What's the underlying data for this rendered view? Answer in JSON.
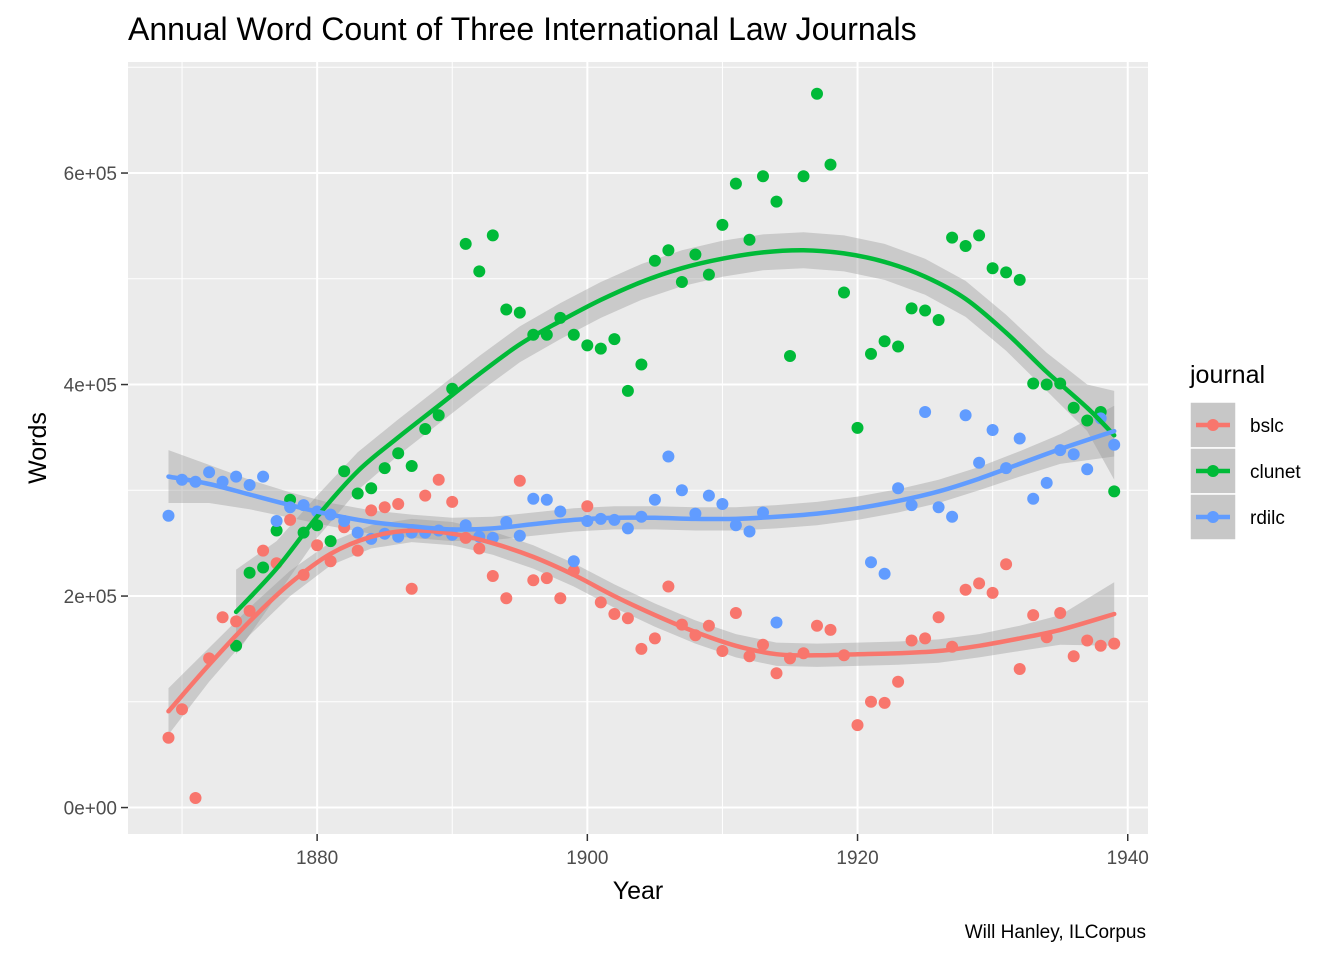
{
  "chart_data": {
    "type": "scatter",
    "title": "Annual Word Count of Three International Law Journals",
    "xlabel": "Year",
    "ylabel": "Words",
    "caption": "Will Hanley, ILCorpus",
    "xlim": [
      1866,
      1941.5
    ],
    "ylim": [
      -25000,
      705000
    ],
    "x_ticks": [
      {
        "value": 1880,
        "label": "1880"
      },
      {
        "value": 1900,
        "label": "1900"
      },
      {
        "value": 1920,
        "label": "1920"
      },
      {
        "value": 1940,
        "label": "1940"
      }
    ],
    "y_ticks": [
      {
        "value": 0,
        "label": "0e+00"
      },
      {
        "value": 200000,
        "label": "2e+05"
      },
      {
        "value": 400000,
        "label": "4e+05"
      },
      {
        "value": 600000,
        "label": "6e+05"
      }
    ],
    "grid": true,
    "smoother": "loess with confidence band",
    "legend": {
      "title": "journal",
      "position": "right"
    },
    "series": [
      {
        "name": "bslc",
        "color": "#F8766D",
        "points": [
          [
            1869,
            66000
          ],
          [
            1870,
            93000
          ],
          [
            1871,
            9000
          ],
          [
            1872,
            141000
          ],
          [
            1873,
            180000
          ],
          [
            1874,
            176000
          ],
          [
            1875,
            186000
          ],
          [
            1876,
            243000
          ],
          [
            1877,
            231000
          ],
          [
            1878,
            272000
          ],
          [
            1879,
            220000
          ],
          [
            1880,
            248000
          ],
          [
            1881,
            233000
          ],
          [
            1882,
            265000
          ],
          [
            1883,
            243000
          ],
          [
            1884,
            281000
          ],
          [
            1885,
            284000
          ],
          [
            1886,
            287000
          ],
          [
            1887,
            207000
          ],
          [
            1888,
            295000
          ],
          [
            1889,
            310000
          ],
          [
            1890,
            289000
          ],
          [
            1891,
            255000
          ],
          [
            1892,
            245000
          ],
          [
            1893,
            219000
          ],
          [
            1894,
            198000
          ],
          [
            1895,
            309000
          ],
          [
            1896,
            215000
          ],
          [
            1897,
            217000
          ],
          [
            1898,
            198000
          ],
          [
            1899,
            224000
          ],
          [
            1900,
            285000
          ],
          [
            1901,
            194000
          ],
          [
            1902,
            183000
          ],
          [
            1903,
            179000
          ],
          [
            1904,
            150000
          ],
          [
            1905,
            160000
          ],
          [
            1906,
            209000
          ],
          [
            1907,
            173000
          ],
          [
            1908,
            163000
          ],
          [
            1909,
            172000
          ],
          [
            1910,
            148000
          ],
          [
            1911,
            184000
          ],
          [
            1912,
            143000
          ],
          [
            1913,
            154000
          ],
          [
            1914,
            127000
          ],
          [
            1915,
            141000
          ],
          [
            1916,
            146000
          ],
          [
            1917,
            172000
          ],
          [
            1918,
            168000
          ],
          [
            1919,
            144000
          ],
          [
            1920,
            78000
          ],
          [
            1921,
            100000
          ],
          [
            1922,
            99000
          ],
          [
            1923,
            119000
          ],
          [
            1924,
            158000
          ],
          [
            1925,
            160000
          ],
          [
            1926,
            180000
          ],
          [
            1927,
            152000
          ],
          [
            1928,
            206000
          ],
          [
            1929,
            212000
          ],
          [
            1930,
            203000
          ],
          [
            1931,
            230000
          ],
          [
            1932,
            131000
          ],
          [
            1933,
            182000
          ],
          [
            1934,
            161000
          ],
          [
            1935,
            184000
          ],
          [
            1936,
            143000
          ],
          [
            1937,
            158000
          ],
          [
            1938,
            153000
          ],
          [
            1939,
            155000
          ]
        ],
        "fit": [
          [
            1869,
            91000
          ],
          [
            1872,
            135000
          ],
          [
            1875,
            176000
          ],
          [
            1878,
            212000
          ],
          [
            1881,
            240000
          ],
          [
            1884,
            256000
          ],
          [
            1887,
            262000
          ],
          [
            1890,
            259000
          ],
          [
            1893,
            250000
          ],
          [
            1896,
            237000
          ],
          [
            1899,
            220000
          ],
          [
            1902,
            200000
          ],
          [
            1905,
            182000
          ],
          [
            1908,
            166000
          ],
          [
            1911,
            153000
          ],
          [
            1914,
            145000
          ],
          [
            1917,
            144000
          ],
          [
            1920,
            145000
          ],
          [
            1923,
            146000
          ],
          [
            1926,
            148000
          ],
          [
            1929,
            153000
          ],
          [
            1932,
            160000
          ],
          [
            1935,
            168000
          ],
          [
            1939,
            183000
          ]
        ],
        "band_halfwidth": [
          22000,
          16000,
          13000,
          12000,
          11000,
          11000,
          11000,
          11000,
          11000,
          11000,
          11000,
          11000,
          11000,
          11000,
          11000,
          11000,
          11000,
          11000,
          11000,
          11000,
          11000,
          12000,
          14000,
          30000
        ]
      },
      {
        "name": "clunet",
        "color": "#00BA38",
        "points": [
          [
            1874,
            153000
          ],
          [
            1875,
            222000
          ],
          [
            1876,
            227000
          ],
          [
            1877,
            262000
          ],
          [
            1878,
            291000
          ],
          [
            1879,
            260000
          ],
          [
            1880,
            267000
          ],
          [
            1881,
            252000
          ],
          [
            1882,
            318000
          ],
          [
            1883,
            297000
          ],
          [
            1884,
            302000
          ],
          [
            1885,
            321000
          ],
          [
            1886,
            335000
          ],
          [
            1887,
            323000
          ],
          [
            1888,
            358000
          ],
          [
            1889,
            371000
          ],
          [
            1890,
            396000
          ],
          [
            1891,
            533000
          ],
          [
            1892,
            507000
          ],
          [
            1893,
            541000
          ],
          [
            1894,
            471000
          ],
          [
            1895,
            468000
          ],
          [
            1896,
            447000
          ],
          [
            1897,
            447000
          ],
          [
            1898,
            463000
          ],
          [
            1899,
            447000
          ],
          [
            1900,
            437000
          ],
          [
            1901,
            434000
          ],
          [
            1902,
            443000
          ],
          [
            1903,
            394000
          ],
          [
            1904,
            419000
          ],
          [
            1905,
            517000
          ],
          [
            1906,
            527000
          ],
          [
            1907,
            497000
          ],
          [
            1908,
            523000
          ],
          [
            1909,
            504000
          ],
          [
            1910,
            551000
          ],
          [
            1911,
            590000
          ],
          [
            1912,
            537000
          ],
          [
            1913,
            597000
          ],
          [
            1914,
            573000
          ],
          [
            1915,
            427000
          ],
          [
            1916,
            597000
          ],
          [
            1917,
            675000
          ],
          [
            1918,
            608000
          ],
          [
            1919,
            487000
          ],
          [
            1920,
            359000
          ],
          [
            1921,
            429000
          ],
          [
            1922,
            441000
          ],
          [
            1923,
            436000
          ],
          [
            1924,
            472000
          ],
          [
            1925,
            470000
          ],
          [
            1926,
            461000
          ],
          [
            1927,
            539000
          ],
          [
            1928,
            531000
          ],
          [
            1929,
            541000
          ],
          [
            1930,
            510000
          ],
          [
            1931,
            506000
          ],
          [
            1932,
            499000
          ],
          [
            1933,
            401000
          ],
          [
            1934,
            400000
          ],
          [
            1935,
            401000
          ],
          [
            1936,
            378000
          ],
          [
            1937,
            366000
          ],
          [
            1938,
            374000
          ],
          [
            1939,
            299000
          ]
        ],
        "fit": [
          [
            1874,
            185000
          ],
          [
            1877,
            226000
          ],
          [
            1880,
            275000
          ],
          [
            1883,
            318000
          ],
          [
            1886,
            350000
          ],
          [
            1889,
            380000
          ],
          [
            1892,
            410000
          ],
          [
            1895,
            438000
          ],
          [
            1898,
            460000
          ],
          [
            1901,
            480000
          ],
          [
            1904,
            497000
          ],
          [
            1907,
            510000
          ],
          [
            1910,
            519000
          ],
          [
            1913,
            525000
          ],
          [
            1916,
            527000
          ],
          [
            1919,
            524000
          ],
          [
            1922,
            516000
          ],
          [
            1925,
            502000
          ],
          [
            1928,
            481000
          ],
          [
            1931,
            449000
          ],
          [
            1934,
            412000
          ],
          [
            1937,
            378000
          ],
          [
            1939,
            352000
          ]
        ],
        "band_halfwidth": [
          40000,
          26000,
          20000,
          18000,
          17000,
          17000,
          17000,
          17000,
          17000,
          17000,
          17000,
          17000,
          17000,
          17000,
          17000,
          17000,
          17000,
          17000,
          17000,
          17000,
          18000,
          22000,
          42000
        ]
      },
      {
        "name": "rdilc",
        "color": "#619CFF",
        "points": [
          [
            1869,
            276000
          ],
          [
            1870,
            310000
          ],
          [
            1871,
            308000
          ],
          [
            1872,
            317000
          ],
          [
            1873,
            308000
          ],
          [
            1874,
            313000
          ],
          [
            1875,
            305000
          ],
          [
            1876,
            313000
          ],
          [
            1877,
            271000
          ],
          [
            1878,
            284000
          ],
          [
            1879,
            286000
          ],
          [
            1880,
            280000
          ],
          [
            1881,
            277000
          ],
          [
            1882,
            271000
          ],
          [
            1883,
            260000
          ],
          [
            1884,
            254000
          ],
          [
            1885,
            259000
          ],
          [
            1886,
            256000
          ],
          [
            1887,
            260000
          ],
          [
            1888,
            260000
          ],
          [
            1889,
            262000
          ],
          [
            1890,
            258000
          ],
          [
            1891,
            267000
          ],
          [
            1892,
            256000
          ],
          [
            1893,
            255000
          ],
          [
            1894,
            270000
          ],
          [
            1895,
            257000
          ],
          [
            1896,
            292000
          ],
          [
            1897,
            291000
          ],
          [
            1898,
            280000
          ],
          [
            1899,
            233000
          ],
          [
            1900,
            271000
          ],
          [
            1901,
            273000
          ],
          [
            1902,
            272000
          ],
          [
            1903,
            264000
          ],
          [
            1904,
            275000
          ],
          [
            1905,
            291000
          ],
          [
            1906,
            332000
          ],
          [
            1907,
            300000
          ],
          [
            1908,
            278000
          ],
          [
            1909,
            295000
          ],
          [
            1910,
            287000
          ],
          [
            1911,
            267000
          ],
          [
            1912,
            261000
          ],
          [
            1913,
            279000
          ],
          [
            1914,
            175000
          ],
          [
            1921,
            232000
          ],
          [
            1922,
            221000
          ],
          [
            1923,
            302000
          ],
          [
            1924,
            286000
          ],
          [
            1925,
            374000
          ],
          [
            1926,
            284000
          ],
          [
            1927,
            275000
          ],
          [
            1928,
            371000
          ],
          [
            1929,
            326000
          ],
          [
            1930,
            357000
          ],
          [
            1931,
            321000
          ],
          [
            1932,
            349000
          ],
          [
            1933,
            292000
          ],
          [
            1934,
            307000
          ],
          [
            1935,
            338000
          ],
          [
            1936,
            334000
          ],
          [
            1937,
            320000
          ],
          [
            1938,
            368000
          ],
          [
            1939,
            343000
          ]
        ],
        "fit": [
          [
            1869,
            313000
          ],
          [
            1872,
            306000
          ],
          [
            1875,
            296000
          ],
          [
            1878,
            286000
          ],
          [
            1881,
            277000
          ],
          [
            1884,
            270000
          ],
          [
            1887,
            266000
          ],
          [
            1890,
            263000
          ],
          [
            1893,
            264000
          ],
          [
            1896,
            268000
          ],
          [
            1899,
            272000
          ],
          [
            1902,
            274000
          ],
          [
            1905,
            274000
          ],
          [
            1908,
            273000
          ],
          [
            1911,
            273000
          ],
          [
            1914,
            275000
          ],
          [
            1917,
            278000
          ],
          [
            1920,
            283000
          ],
          [
            1923,
            290000
          ],
          [
            1926,
            299000
          ],
          [
            1929,
            311000
          ],
          [
            1932,
            325000
          ],
          [
            1935,
            339000
          ],
          [
            1939,
            356000
          ]
        ],
        "band_halfwidth": [
          25000,
          18000,
          14000,
          12000,
          11000,
          11000,
          11000,
          11000,
          11000,
          11000,
          11000,
          11000,
          11000,
          11000,
          11000,
          11000,
          11000,
          11000,
          11000,
          11000,
          11000,
          12000,
          14000,
          24000
        ]
      }
    ]
  }
}
